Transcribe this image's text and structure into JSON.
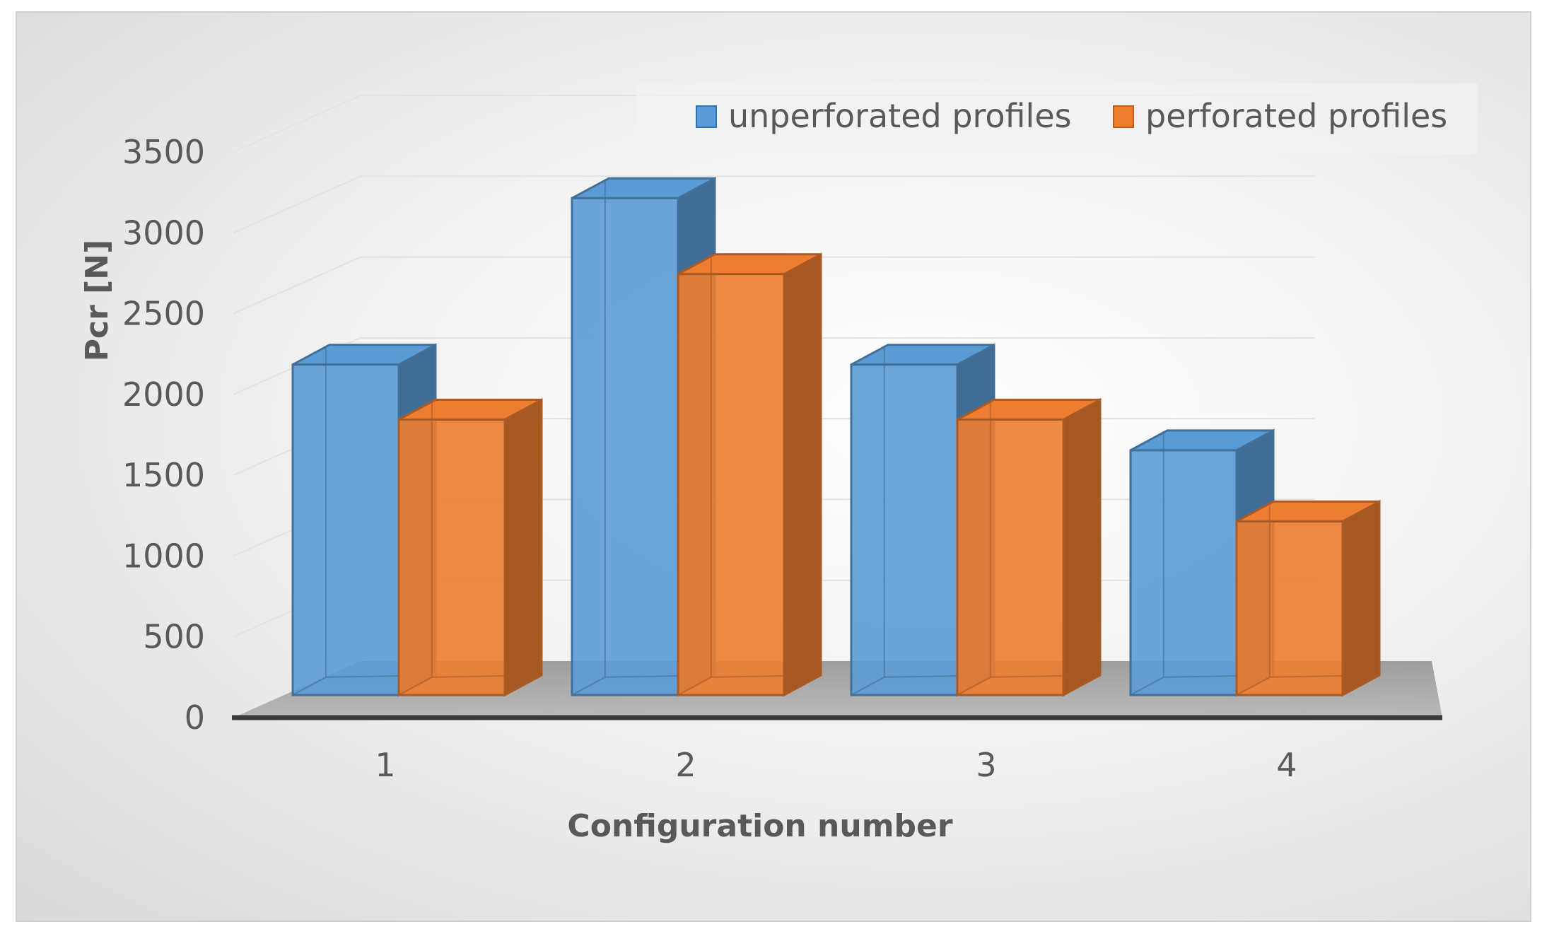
{
  "chart_data": {
    "type": "bar",
    "title": "",
    "xlabel": "Configuration number",
    "ylabel": "Pcr [N]",
    "categories": [
      "1",
      "2",
      "3",
      "4"
    ],
    "series": [
      {
        "name": "unperforated profiles",
        "color": "#5b9bd5",
        "values": [
          2110,
          3140,
          2110,
          1580
        ]
      },
      {
        "name": "perforated profiles",
        "color": "#ed7d31",
        "values": [
          1770,
          2670,
          1770,
          1140
        ]
      }
    ],
    "ylim": [
      0,
      3500
    ],
    "yticks": [
      "0",
      "500",
      "1000",
      "1500",
      "2000",
      "2500",
      "3000",
      "3500"
    ],
    "grid": true,
    "legend_position": "top-right",
    "style": "3d-clustered-column"
  }
}
